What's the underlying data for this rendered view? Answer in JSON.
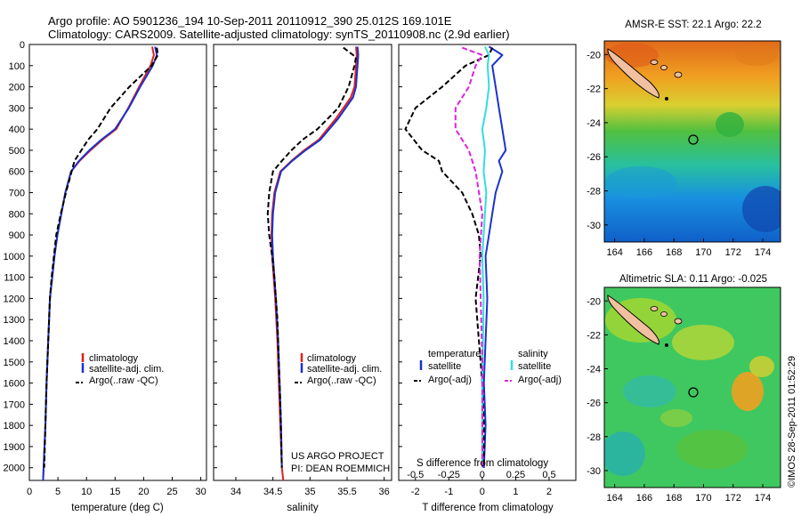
{
  "header": {
    "line1": "Argo profile: AO 5901236_194 10-Sep-2011 20110912_390 25.012S 169.101E",
    "line2": "Climatology: CARS2009. Satellite-adjusted climatology: synTS_20110908.nc (2.9d earlier)"
  },
  "colors": {
    "climatology": "#e0201b",
    "satellite": "#1a33cc",
    "argo": "#000000",
    "sal_satellite": "#33dde0",
    "sal_argo": "#dd22dd"
  },
  "chart_data": [
    {
      "type": "line",
      "name": "temperature-profile",
      "xlabel": "temperature (deg C)",
      "ylabel": "",
      "xlim": [
        0,
        31
      ],
      "ylim": [
        0,
        2060
      ],
      "y_inverted": true,
      "xticks": [
        "0",
        "5",
        "10",
        "15",
        "20",
        "25",
        "30"
      ],
      "yticks": [
        "0",
        "100",
        "200",
        "300",
        "400",
        "500",
        "600",
        "700",
        "800",
        "900",
        "1000",
        "1100",
        "1200",
        "1300",
        "1400",
        "1500",
        "1600",
        "1700",
        "1800",
        "1900",
        "2000"
      ],
      "legend": [
        "climatology",
        "satellite-adj. clim.",
        "Argo(..raw -QC)"
      ],
      "series": [
        {
          "name": "climatology",
          "style": "solid",
          "x": [
            21.5,
            21.8,
            21.2,
            19.2,
            17.3,
            15.2,
            12.8,
            10.7,
            8.8,
            7.3,
            6.3,
            5.6,
            4.9,
            4.4,
            4.0,
            3.6,
            3.3,
            3.0,
            2.8,
            2.5,
            2.4
          ],
          "y": [
            10,
            50,
            100,
            200,
            300,
            400,
            450,
            500,
            550,
            600,
            700,
            800,
            900,
            1000,
            1100,
            1200,
            1400,
            1600,
            1800,
            2000,
            2060
          ]
        },
        {
          "name": "satellite-adj. clim.",
          "style": "solid",
          "x": [
            22.0,
            22.3,
            21.6,
            19.4,
            17.4,
            15.0,
            12.6,
            10.5,
            8.7,
            7.3,
            6.3,
            5.6,
            4.9,
            4.4,
            4.0,
            3.6,
            3.3,
            3.0,
            2.8,
            2.5,
            2.4
          ],
          "y": [
            10,
            50,
            100,
            200,
            300,
            400,
            450,
            500,
            550,
            600,
            700,
            800,
            900,
            1000,
            1100,
            1200,
            1400,
            1600,
            1800,
            2000,
            2060
          ]
        },
        {
          "name": "Argo(..raw -QC)",
          "style": "dashed",
          "x": [
            22.3,
            22.5,
            21.4,
            17.5,
            14.2,
            11.9,
            10.3,
            9.1,
            7.9,
            6.4,
            5.5,
            4.7,
            4.3,
            3.9,
            3.6,
            3.3,
            3.0,
            2.8,
            2.6
          ],
          "y": [
            15,
            50,
            100,
            200,
            300,
            400,
            450,
            500,
            550,
            700,
            800,
            900,
            1000,
            1100,
            1200,
            1400,
            1600,
            1800,
            2000
          ]
        }
      ]
    },
    {
      "type": "line",
      "name": "salinity-profile",
      "xlabel": "salinity",
      "xlim": [
        33.7,
        36.1
      ],
      "ylim": [
        0,
        2060
      ],
      "y_inverted": true,
      "xticks": [
        "34",
        "34.5",
        "35",
        "35.5",
        "36"
      ],
      "legend": [
        "climatology",
        "satellite-adj. clim.",
        "Argo(..raw -QC)"
      ],
      "annotation": [
        "US ARGO PROJECT",
        "PI: DEAN ROEMMICH"
      ],
      "series": [
        {
          "name": "climatology",
          "style": "solid",
          "x": [
            35.62,
            35.63,
            35.62,
            35.6,
            35.55,
            35.35,
            35.12,
            34.92,
            34.75,
            34.6,
            34.52,
            34.49,
            34.48,
            34.49,
            34.51,
            34.53,
            34.56,
            34.58,
            34.6,
            34.62,
            34.63,
            34.64
          ],
          "y": [
            10,
            50,
            100,
            200,
            250,
            350,
            450,
            500,
            550,
            600,
            700,
            800,
            900,
            1000,
            1100,
            1200,
            1400,
            1600,
            1800,
            2000,
            2030,
            2060
          ]
        },
        {
          "name": "satellite-adj. clim.",
          "style": "solid",
          "x": [
            35.64,
            35.65,
            35.64,
            35.62,
            35.58,
            35.38,
            35.14,
            34.94,
            34.76,
            34.61,
            34.53,
            34.5,
            34.49,
            34.5,
            34.52,
            34.54,
            34.57,
            34.59,
            34.61,
            34.62
          ],
          "y": [
            10,
            50,
            100,
            200,
            250,
            350,
            450,
            500,
            550,
            600,
            700,
            800,
            900,
            1000,
            1100,
            1200,
            1400,
            1600,
            1800,
            2000
          ]
        },
        {
          "name": "Argo(..raw -QC)",
          "style": "dashed",
          "x": [
            35.45,
            35.62,
            35.6,
            35.52,
            35.38,
            35.1,
            34.9,
            34.75,
            34.62,
            34.5,
            34.45,
            34.43,
            34.45,
            34.49,
            34.52,
            34.56,
            34.58,
            34.6,
            34.62
          ],
          "y": [
            15,
            60,
            100,
            200,
            300,
            400,
            450,
            500,
            550,
            600,
            700,
            800,
            900,
            1000,
            1100,
            1300,
            1500,
            1700,
            2000
          ]
        }
      ]
    },
    {
      "type": "line",
      "name": "difference-profile",
      "xlabel_top": "S difference from climatology",
      "xlabel": "T difference from climatology",
      "xticks_top": [
        "-0.5",
        "-0.25",
        "0",
        "0.25",
        "0.5"
      ],
      "xticks": [
        "-2",
        "-1",
        "0",
        "1",
        "2"
      ],
      "xlim": [
        -2.5,
        2.8
      ],
      "ylim": [
        0,
        2060
      ],
      "y_inverted": true,
      "legend_groups": [
        {
          "title": "temperature",
          "items": [
            "satellite",
            "Argo(-adj)"
          ]
        },
        {
          "title": "salinity",
          "items": [
            "satellite",
            "Argo(-adj)"
          ]
        }
      ],
      "series": [
        {
          "name": "temperature satellite",
          "style": "solid",
          "x": [
            0.2,
            0.6,
            0.3,
            0.4,
            0.5,
            0.6,
            0.7,
            0.5,
            0.6,
            0.4,
            0.3,
            0.2,
            0.1,
            0.15,
            0.1,
            0.05,
            0.1,
            0.05
          ],
          "y": [
            10,
            50,
            100,
            200,
            300,
            400,
            500,
            550,
            600,
            700,
            800,
            900,
            1000,
            1200,
            1400,
            1600,
            1800,
            2000
          ]
        },
        {
          "name": "temperature Argo(-adj)",
          "style": "dashed",
          "x": [
            0.3,
            0.2,
            -0.5,
            -1.2,
            -2.0,
            -2.3,
            -1.8,
            -1.3,
            -1.2,
            -0.6,
            -0.3,
            -0.1,
            -0.05,
            -0.2,
            -0.1,
            0.0,
            0.05,
            0.05
          ],
          "y": [
            15,
            50,
            100,
            200,
            300,
            400,
            500,
            550,
            600,
            700,
            800,
            900,
            1000,
            1200,
            1400,
            1600,
            1800,
            2000
          ]
        },
        {
          "name": "salinity satellite",
          "style": "solid",
          "x": [
            0.02,
            0.05,
            0.04,
            0.05,
            0.03,
            0.0,
            0.02,
            0.01,
            0.03,
            0.02,
            0.0,
            0.01,
            0.0,
            0.0
          ],
          "y": [
            10,
            50,
            100,
            200,
            300,
            400,
            500,
            600,
            700,
            800,
            1000,
            1200,
            1600,
            2000
          ]
        },
        {
          "name": "salinity Argo(-adj)",
          "style": "dashed",
          "x": [
            -0.15,
            0.0,
            -0.05,
            -0.1,
            -0.2,
            -0.2,
            -0.1,
            -0.05,
            0.0,
            -0.02,
            0.0,
            0.0
          ],
          "y": [
            15,
            50,
            100,
            200,
            300,
            400,
            500,
            600,
            800,
            1000,
            1500,
            2000
          ]
        }
      ]
    },
    {
      "type": "heatmap",
      "name": "sst-map",
      "title": "AMSR-E SST: 22.1 Argo: 22.2",
      "xticks": [
        "164",
        "166",
        "168",
        "170",
        "172",
        "174"
      ],
      "yticks": [
        "-20",
        "-22",
        "-24",
        "-26",
        "-28",
        "-30"
      ],
      "xlim": [
        163.3,
        175.2
      ],
      "ylim": [
        -31.0,
        -19.2
      ],
      "profile_marker": {
        "lon": 169.1,
        "lat": -25.0
      }
    },
    {
      "type": "heatmap",
      "name": "sla-map",
      "title": "Altimetric SLA: 0.11 Argo: -0.025",
      "xticks": [
        "164",
        "166",
        "168",
        "170",
        "172",
        "174"
      ],
      "yticks": [
        "-20",
        "-22",
        "-24",
        "-26",
        "-28",
        "-30"
      ],
      "xlim": [
        163.3,
        175.2
      ],
      "ylim": [
        -31.0,
        -19.2
      ],
      "profile_marker": {
        "lon": 169.1,
        "lat": -25.0
      }
    }
  ],
  "credit": "©IMOS 28-Sep-2011 01:52:29"
}
